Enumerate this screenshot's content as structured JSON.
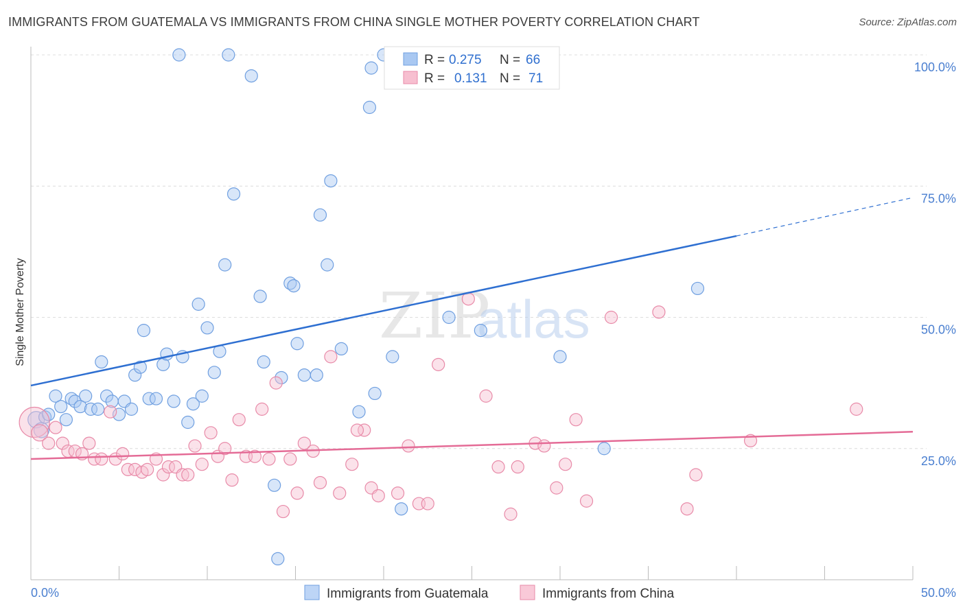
{
  "title": "IMMIGRANTS FROM GUATEMALA VS IMMIGRANTS FROM CHINA SINGLE MOTHER POVERTY CORRELATION CHART",
  "source": "Source: ZipAtlas.com",
  "watermark": {
    "zip": "ZIP",
    "atlas": "atlas"
  },
  "legend": {
    "r_label": "R =",
    "n_label": "N =",
    "items": [
      {
        "r": "0.275",
        "n": "66",
        "color": "#a9c8f2",
        "stroke": "#6f9fe0"
      },
      {
        "r": "0.131",
        "n": "71",
        "color": "#f7bfd0",
        "stroke": "#e88aa8"
      }
    ]
  },
  "bottom_legend": [
    {
      "label": "Immigrants from Guatemala",
      "color": "#bdd5f6",
      "stroke": "#6f9fe0"
    },
    {
      "label": "Immigrants from China",
      "color": "#f9c9d8",
      "stroke": "#e88aa8"
    }
  ],
  "chart_data": {
    "type": "scatter",
    "title": "IMMIGRANTS FROM GUATEMALA VS IMMIGRANTS FROM CHINA SINGLE MOTHER POVERTY CORRELATION CHART",
    "xlabel": "",
    "ylabel": "Single Mother Poverty",
    "xlim": [
      0,
      50
    ],
    "ylim": [
      0,
      100
    ],
    "x_tick_labels": [
      "0.0%",
      "50.0%"
    ],
    "y_ticks": [
      25,
      50,
      75,
      100
    ],
    "y_tick_labels": [
      "25.0%",
      "50.0%",
      "75.0%",
      "100.0%"
    ],
    "grid": true,
    "legend_position": "top-center",
    "series": [
      {
        "name": "Immigrants from Guatemala",
        "color": "#6f9fe0",
        "fill": "#a9c8f2",
        "trend": {
          "x": [
            0,
            40
          ],
          "y": [
            37.0,
            65.5
          ],
          "dashed_to": [
            50,
            72.8
          ]
        },
        "points": [
          [
            0.3,
            30.5,
            12
          ],
          [
            0.8,
            31.0,
            9
          ],
          [
            1.0,
            31.5,
            9
          ],
          [
            1.4,
            35.0,
            9
          ],
          [
            1.7,
            33.0,
            9
          ],
          [
            2.0,
            30.5,
            9
          ],
          [
            2.3,
            34.5,
            9
          ],
          [
            2.5,
            34.0,
            9
          ],
          [
            2.8,
            33.0,
            9
          ],
          [
            3.1,
            35.0,
            9
          ],
          [
            3.4,
            32.5,
            9
          ],
          [
            3.8,
            32.5,
            9
          ],
          [
            4.0,
            41.5,
            9
          ],
          [
            4.3,
            35.0,
            9
          ],
          [
            4.6,
            34.0,
            9
          ],
          [
            5.0,
            31.5,
            9
          ],
          [
            5.3,
            34.0,
            9
          ],
          [
            5.7,
            32.5,
            9
          ],
          [
            5.9,
            39.0,
            9
          ],
          [
            6.2,
            40.5,
            9
          ],
          [
            6.4,
            47.5,
            9
          ],
          [
            6.7,
            34.5,
            9
          ],
          [
            7.1,
            34.5,
            9
          ],
          [
            7.5,
            41.0,
            9
          ],
          [
            7.7,
            43.0,
            9
          ],
          [
            8.1,
            34.0,
            9
          ],
          [
            8.4,
            100.0,
            9
          ],
          [
            8.6,
            42.5,
            9
          ],
          [
            8.9,
            30.0,
            9
          ],
          [
            9.2,
            33.5,
            9
          ],
          [
            9.5,
            52.5,
            9
          ],
          [
            9.7,
            35.0,
            9
          ],
          [
            10.0,
            48.0,
            9
          ],
          [
            10.4,
            39.5,
            9
          ],
          [
            10.7,
            43.5,
            9
          ],
          [
            11.0,
            60.0,
            9
          ],
          [
            11.2,
            100.0,
            9
          ],
          [
            11.5,
            73.5,
            9
          ],
          [
            12.5,
            96.0,
            9
          ],
          [
            13.0,
            54.0,
            9
          ],
          [
            13.2,
            41.5,
            9
          ],
          [
            13.8,
            18.0,
            9
          ],
          [
            14.0,
            4.0,
            9
          ],
          [
            14.2,
            38.5,
            9
          ],
          [
            14.7,
            56.5,
            9
          ],
          [
            14.9,
            56.0,
            9
          ],
          [
            15.1,
            45.0,
            9
          ],
          [
            15.5,
            39.0,
            9
          ],
          [
            16.2,
            39.0,
            9
          ],
          [
            16.4,
            69.5,
            9
          ],
          [
            16.8,
            60.0,
            9
          ],
          [
            17.0,
            76.0,
            9
          ],
          [
            17.6,
            44.0,
            9
          ],
          [
            18.6,
            32.0,
            9
          ],
          [
            19.2,
            90.0,
            9
          ],
          [
            19.3,
            97.5,
            9
          ],
          [
            19.5,
            35.5,
            9
          ],
          [
            20.0,
            100.0,
            9
          ],
          [
            20.5,
            42.5,
            9
          ],
          [
            21.0,
            13.5,
            9
          ],
          [
            23.7,
            50.0,
            9
          ],
          [
            25.5,
            47.5,
            9
          ],
          [
            30.0,
            42.5,
            9
          ],
          [
            32.5,
            25.0,
            9
          ],
          [
            37.8,
            55.5,
            9
          ],
          [
            0.6,
            28.5,
            11
          ]
        ]
      },
      {
        "name": "Immigrants from China",
        "color": "#e88aa8",
        "fill": "#f7bfd0",
        "trend": {
          "x": [
            0,
            50
          ],
          "y": [
            23.0,
            28.2
          ]
        },
        "points": [
          [
            0.2,
            30.0,
            22
          ],
          [
            0.5,
            28.0,
            12
          ],
          [
            1.0,
            26.0,
            9
          ],
          [
            1.4,
            29.0,
            9
          ],
          [
            1.8,
            26.0,
            9
          ],
          [
            2.1,
            24.5,
            9
          ],
          [
            2.5,
            24.5,
            9
          ],
          [
            2.9,
            24.0,
            9
          ],
          [
            3.3,
            26.0,
            9
          ],
          [
            3.6,
            23.0,
            9
          ],
          [
            4.0,
            23.0,
            9
          ],
          [
            4.5,
            32.0,
            9
          ],
          [
            4.8,
            23.0,
            9
          ],
          [
            5.2,
            24.0,
            9
          ],
          [
            5.5,
            21.0,
            9
          ],
          [
            5.9,
            21.0,
            9
          ],
          [
            6.3,
            20.5,
            9
          ],
          [
            6.6,
            21.0,
            9
          ],
          [
            7.1,
            23.0,
            9
          ],
          [
            7.5,
            20.0,
            9
          ],
          [
            7.8,
            21.5,
            9
          ],
          [
            8.2,
            21.5,
            9
          ],
          [
            8.6,
            20.0,
            9
          ],
          [
            8.9,
            20.0,
            9
          ],
          [
            9.3,
            25.5,
            9
          ],
          [
            9.7,
            22.0,
            9
          ],
          [
            10.2,
            28.0,
            9
          ],
          [
            10.6,
            23.5,
            9
          ],
          [
            11.0,
            25.0,
            9
          ],
          [
            11.4,
            19.0,
            9
          ],
          [
            11.8,
            30.5,
            9
          ],
          [
            12.2,
            23.5,
            9
          ],
          [
            12.7,
            23.5,
            9
          ],
          [
            13.1,
            32.5,
            9
          ],
          [
            13.5,
            23.0,
            9
          ],
          [
            13.9,
            37.5,
            9
          ],
          [
            14.3,
            13.0,
            9
          ],
          [
            14.7,
            23.0,
            9
          ],
          [
            15.1,
            16.5,
            9
          ],
          [
            15.5,
            26.0,
            9
          ],
          [
            16.0,
            24.5,
            9
          ],
          [
            16.4,
            18.5,
            9
          ],
          [
            17.0,
            42.5,
            9
          ],
          [
            17.5,
            16.5,
            9
          ],
          [
            18.2,
            22.0,
            9
          ],
          [
            18.9,
            28.5,
            9
          ],
          [
            19.3,
            17.5,
            9
          ],
          [
            19.7,
            16.0,
            9
          ],
          [
            20.8,
            16.5,
            9
          ],
          [
            21.4,
            25.5,
            9
          ],
          [
            22.0,
            14.5,
            9
          ],
          [
            22.5,
            14.5,
            9
          ],
          [
            23.1,
            41.0,
            9
          ],
          [
            24.8,
            53.5,
            9
          ],
          [
            25.8,
            35.0,
            9
          ],
          [
            26.5,
            21.5,
            9
          ],
          [
            27.2,
            12.5,
            9
          ],
          [
            27.6,
            21.5,
            9
          ],
          [
            28.6,
            26.0,
            9
          ],
          [
            29.1,
            25.5,
            9
          ],
          [
            29.8,
            17.5,
            9
          ],
          [
            30.3,
            22.0,
            9
          ],
          [
            30.9,
            30.5,
            9
          ],
          [
            31.5,
            15.0,
            9
          ],
          [
            32.9,
            50.0,
            9
          ],
          [
            35.6,
            51.0,
            9
          ],
          [
            37.2,
            13.5,
            9
          ],
          [
            37.7,
            20.0,
            9
          ],
          [
            40.8,
            26.5,
            9
          ],
          [
            46.8,
            32.5,
            9
          ],
          [
            18.5,
            28.5,
            9
          ]
        ]
      }
    ]
  }
}
